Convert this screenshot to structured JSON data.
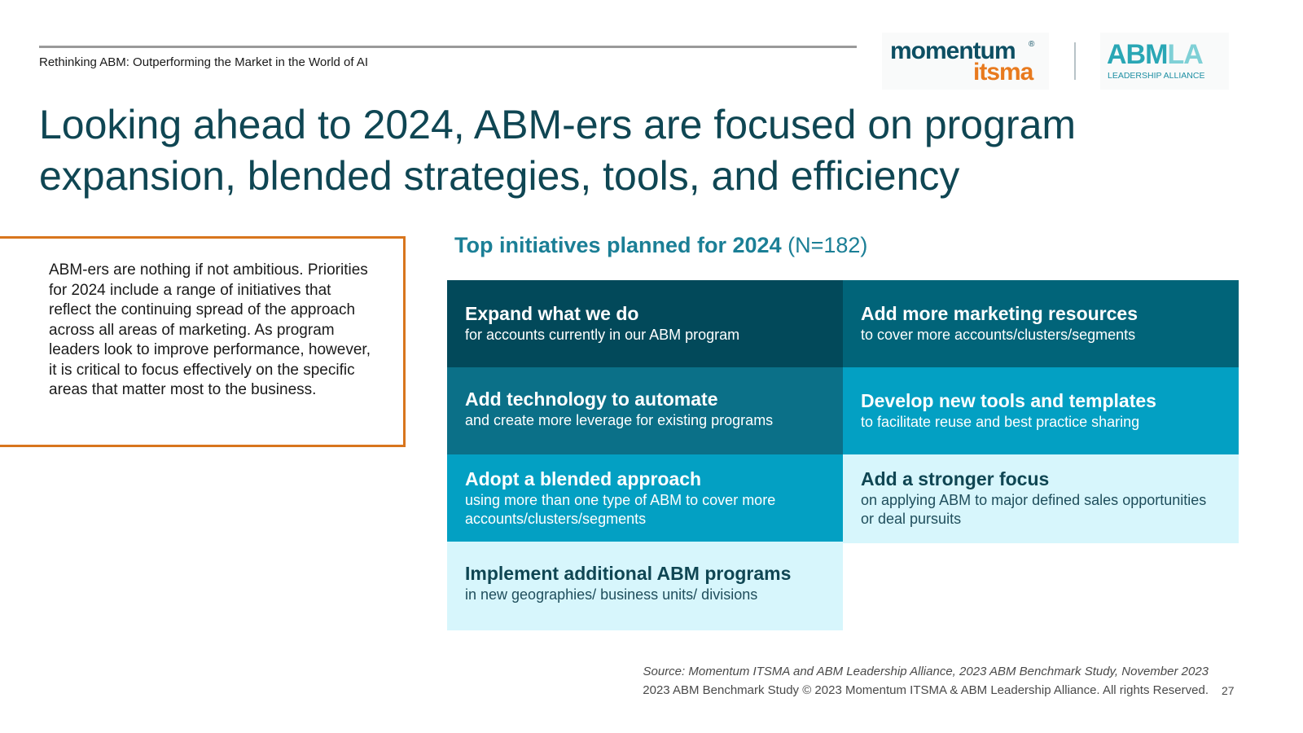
{
  "header": {
    "breadcrumb": "Rethinking ABM: Outperforming the Market in the World of AI",
    "logos": {
      "momentum_word": "momentum",
      "momentum_reg": "®",
      "itsma_word": "itsma",
      "abmla_mark_abm": "ABM",
      "abmla_mark_la": "LA",
      "abmla_sub": "LEADERSHIP ALLIANCE"
    }
  },
  "title": "Looking ahead to 2024, ABM-ers are focused on program expansion, blended strategies, tools, and efficiency",
  "callout": {
    "text": "ABM-ers are nothing if not ambitious. Priorities for 2024 include a range of initiatives that reflect the continuing spread of the approach across all areas of marketing. As program leaders look to improve performance, however, it is critical to focus effectively on the specific areas that matter most to the business."
  },
  "initiatives": {
    "heading_bold": "Top initiatives planned for 2024",
    "heading_n": "(N=182)",
    "tiles": [
      {
        "title": "Expand what we do",
        "sub": "for accounts currently in our ABM program"
      },
      {
        "title": "Add more marketing resources",
        "sub": "to cover more accounts/clusters/segments"
      },
      {
        "title": "Add technology to automate",
        "sub": "and create more leverage for existing programs"
      },
      {
        "title": "Develop new tools and templates",
        "sub": "to facilitate reuse and best practice sharing"
      },
      {
        "title": "Adopt a blended approach",
        "sub": "using more than one type of ABM to cover more accounts/clusters/segments"
      },
      {
        "title": "Add a stronger focus",
        "sub": "on applying ABM to major defined sales opportunities or deal pursuits"
      },
      {
        "title": "Implement additional ABM programs",
        "sub": "in new geographies/ business units/ divisions"
      }
    ]
  },
  "footer": {
    "source": "Source: Momentum ITSMA and ABM Leadership Alliance, 2023 ABM Benchmark Study, November 2023",
    "copyright": "2023 ABM Benchmark Study © 2023 Momentum ITSMA & ABM Leadership Alliance. All rights Reserved.",
    "page_number": "27"
  }
}
